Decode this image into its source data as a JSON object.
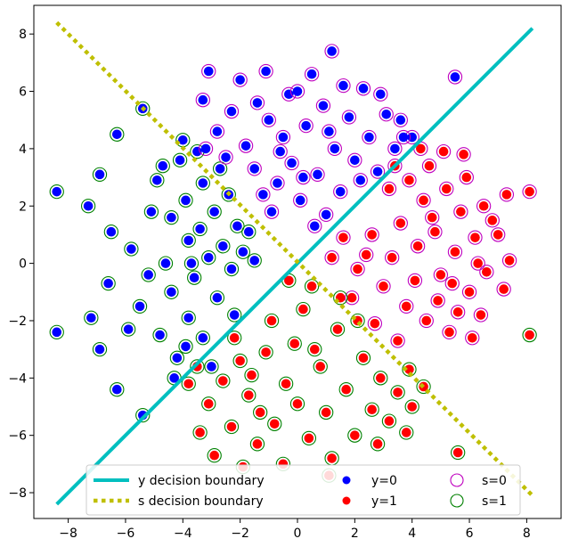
{
  "chart_data": {
    "type": "scatter",
    "title": "",
    "xlabel": "",
    "ylabel": "",
    "xlim": [
      -9.2,
      9.2
    ],
    "ylim": [
      -8.9,
      9.0
    ],
    "xticks": [
      -8,
      -6,
      -4,
      -2,
      0,
      2,
      4,
      6,
      8
    ],
    "yticks": [
      -8,
      -6,
      -4,
      -2,
      0,
      2,
      4,
      6,
      8
    ],
    "grid": false,
    "legend_position": "bottom-center",
    "colors": {
      "y0": "#0000ff",
      "y1": "#ff0000",
      "s0": "#bf00bf",
      "s1": "#008000",
      "y_boundary": "#00bfbf",
      "s_boundary": "#bfbf00"
    },
    "boundaries": [
      {
        "label": "y decision boundary",
        "style": "solid",
        "x": [
          -8.4,
          8.2
        ],
        "y": [
          -8.4,
          8.2
        ]
      },
      {
        "label": "s decision boundary",
        "style": "dotted",
        "x": [
          -8.4,
          8.2
        ],
        "y": [
          8.4,
          -8.1
        ]
      }
    ],
    "legend": [
      {
        "label": "y decision boundary",
        "kind": "line-solid"
      },
      {
        "label": "s decision boundary",
        "kind": "line-dotted"
      },
      {
        "label": "y=0",
        "kind": "dot-y0"
      },
      {
        "label": "y=1",
        "kind": "dot-y1"
      },
      {
        "label": "s=0",
        "kind": "ring-s0"
      },
      {
        "label": "s=1",
        "kind": "ring-s1"
      }
    ],
    "points": [
      {
        "x": -8.4,
        "y": 2.5,
        "y_class": 0,
        "s_class": 1
      },
      {
        "x": -8.4,
        "y": -2.4,
        "y_class": 0,
        "s_class": 1
      },
      {
        "x": -7.3,
        "y": 2.0,
        "y_class": 0,
        "s_class": 1
      },
      {
        "x": -7.2,
        "y": -1.9,
        "y_class": 0,
        "s_class": 1
      },
      {
        "x": -6.9,
        "y": 3.1,
        "y_class": 0,
        "s_class": 1
      },
      {
        "x": -6.9,
        "y": -3.0,
        "y_class": 0,
        "s_class": 1
      },
      {
        "x": -6.3,
        "y": 4.5,
        "y_class": 0,
        "s_class": 1
      },
      {
        "x": -6.3,
        "y": -4.4,
        "y_class": 0,
        "s_class": 1
      },
      {
        "x": -5.4,
        "y": 5.4,
        "y_class": 0,
        "s_class": 1
      },
      {
        "x": -5.4,
        "y": -5.3,
        "y_class": 0,
        "s_class": 1
      },
      {
        "x": -6.5,
        "y": 1.1,
        "y_class": 0,
        "s_class": 1
      },
      {
        "x": -6.6,
        "y": -0.7,
        "y_class": 0,
        "s_class": 1
      },
      {
        "x": -5.8,
        "y": 0.5,
        "y_class": 0,
        "s_class": 1
      },
      {
        "x": -5.5,
        "y": -1.5,
        "y_class": 0,
        "s_class": 1
      },
      {
        "x": -4.9,
        "y": 2.9,
        "y_class": 0,
        "s_class": 1
      },
      {
        "x": -4.8,
        "y": -2.5,
        "y_class": 0,
        "s_class": 1
      },
      {
        "x": -4.6,
        "y": 0.0,
        "y_class": 0,
        "s_class": 1
      },
      {
        "x": -4.4,
        "y": 1.6,
        "y_class": 0,
        "s_class": 1
      },
      {
        "x": -4.4,
        "y": -1.0,
        "y_class": 0,
        "s_class": 1
      },
      {
        "x": -4.1,
        "y": 3.6,
        "y_class": 0,
        "s_class": 1
      },
      {
        "x": -4.2,
        "y": -3.3,
        "y_class": 0,
        "s_class": 1
      },
      {
        "x": -3.9,
        "y": 2.2,
        "y_class": 0,
        "s_class": 1
      },
      {
        "x": -3.8,
        "y": 0.8,
        "y_class": 0,
        "s_class": 1
      },
      {
        "x": -3.8,
        "y": -1.9,
        "y_class": 0,
        "s_class": 1
      },
      {
        "x": -3.6,
        "y": -0.5,
        "y_class": 0,
        "s_class": 1
      },
      {
        "x": -3.4,
        "y": 1.2,
        "y_class": 0,
        "s_class": 1
      },
      {
        "x": -3.3,
        "y": 2.8,
        "y_class": 0,
        "s_class": 1
      },
      {
        "x": -3.3,
        "y": -2.6,
        "y_class": 0,
        "s_class": 1
      },
      {
        "x": -3.1,
        "y": 0.2,
        "y_class": 0,
        "s_class": 1
      },
      {
        "x": -2.9,
        "y": 1.8,
        "y_class": 0,
        "s_class": 1
      },
      {
        "x": -2.8,
        "y": -1.2,
        "y_class": 0,
        "s_class": 1
      },
      {
        "x": -2.6,
        "y": 0.6,
        "y_class": 0,
        "s_class": 1
      },
      {
        "x": -2.4,
        "y": 2.4,
        "y_class": 0,
        "s_class": 1
      },
      {
        "x": -2.3,
        "y": -0.2,
        "y_class": 0,
        "s_class": 1
      },
      {
        "x": -2.1,
        "y": 1.3,
        "y_class": 0,
        "s_class": 1
      },
      {
        "x": -1.9,
        "y": 0.4,
        "y_class": 0,
        "s_class": 1
      },
      {
        "x": -1.7,
        "y": 1.1,
        "y_class": 0,
        "s_class": 1
      },
      {
        "x": -1.5,
        "y": 0.1,
        "y_class": 0,
        "s_class": 1
      },
      {
        "x": -4.0,
        "y": 4.3,
        "y_class": 0,
        "s_class": 1
      },
      {
        "x": -3.5,
        "y": 3.9,
        "y_class": 0,
        "s_class": 1
      },
      {
        "x": -5.1,
        "y": 1.8,
        "y_class": 0,
        "s_class": 1
      },
      {
        "x": -5.9,
        "y": -2.3,
        "y_class": 0,
        "s_class": 1
      },
      {
        "x": -4.3,
        "y": -4.0,
        "y_class": 0,
        "s_class": 1
      },
      {
        "x": -3.0,
        "y": -3.6,
        "y_class": 0,
        "s_class": 1
      },
      {
        "x": -2.7,
        "y": 3.3,
        "y_class": 0,
        "s_class": 1
      },
      {
        "x": -2.2,
        "y": -1.8,
        "y_class": 0,
        "s_class": 1
      },
      {
        "x": -3.7,
        "y": 0.0,
        "y_class": 0,
        "s_class": 1
      },
      {
        "x": -4.7,
        "y": 3.4,
        "y_class": 0,
        "s_class": 1
      },
      {
        "x": -5.2,
        "y": -0.4,
        "y_class": 0,
        "s_class": 1
      },
      {
        "x": -3.9,
        "y": -2.9,
        "y_class": 0,
        "s_class": 1
      },
      {
        "x": -3.2,
        "y": 4.0,
        "y_class": 0,
        "s_class": 0
      },
      {
        "x": -2.8,
        "y": 4.6,
        "y_class": 0,
        "s_class": 0
      },
      {
        "x": -2.3,
        "y": 5.3,
        "y_class": 0,
        "s_class": 0
      },
      {
        "x": -2.0,
        "y": 6.4,
        "y_class": 0,
        "s_class": 0
      },
      {
        "x": -1.8,
        "y": 4.1,
        "y_class": 0,
        "s_class": 0
      },
      {
        "x": -1.5,
        "y": 3.3,
        "y_class": 0,
        "s_class": 0
      },
      {
        "x": -1.1,
        "y": 6.7,
        "y_class": 0,
        "s_class": 0
      },
      {
        "x": -1.0,
        "y": 5.0,
        "y_class": 0,
        "s_class": 0
      },
      {
        "x": -0.7,
        "y": 2.8,
        "y_class": 0,
        "s_class": 0
      },
      {
        "x": -0.5,
        "y": 4.4,
        "y_class": 0,
        "s_class": 0
      },
      {
        "x": -0.3,
        "y": 5.9,
        "y_class": 0,
        "s_class": 0
      },
      {
        "x": -0.2,
        "y": 3.5,
        "y_class": 0,
        "s_class": 0
      },
      {
        "x": 0.1,
        "y": 2.2,
        "y_class": 0,
        "s_class": 0
      },
      {
        "x": 0.3,
        "y": 4.8,
        "y_class": 0,
        "s_class": 0
      },
      {
        "x": 0.5,
        "y": 6.6,
        "y_class": 0,
        "s_class": 0
      },
      {
        "x": 0.7,
        "y": 3.1,
        "y_class": 0,
        "s_class": 0
      },
      {
        "x": 0.9,
        "y": 5.5,
        "y_class": 0,
        "s_class": 0
      },
      {
        "x": 1.2,
        "y": 7.4,
        "y_class": 0,
        "s_class": 0
      },
      {
        "x": 1.3,
        "y": 4.0,
        "y_class": 0,
        "s_class": 0
      },
      {
        "x": 1.5,
        "y": 2.5,
        "y_class": 0,
        "s_class": 0
      },
      {
        "x": 1.8,
        "y": 5.1,
        "y_class": 0,
        "s_class": 0
      },
      {
        "x": 2.0,
        "y": 3.6,
        "y_class": 0,
        "s_class": 0
      },
      {
        "x": 2.3,
        "y": 6.1,
        "y_class": 0,
        "s_class": 0
      },
      {
        "x": 2.5,
        "y": 4.4,
        "y_class": 0,
        "s_class": 0
      },
      {
        "x": 2.8,
        "y": 3.2,
        "y_class": 0,
        "s_class": 0
      },
      {
        "x": 3.1,
        "y": 5.2,
        "y_class": 0,
        "s_class": 0
      },
      {
        "x": 3.4,
        "y": 4.0,
        "y_class": 0,
        "s_class": 0
      },
      {
        "x": 3.6,
        "y": 5.0,
        "y_class": 0,
        "s_class": 0
      },
      {
        "x": 4.0,
        "y": 4.4,
        "y_class": 0,
        "s_class": 0
      },
      {
        "x": -3.1,
        "y": 6.7,
        "y_class": 0,
        "s_class": 0
      },
      {
        "x": -3.3,
        "y": 5.7,
        "y_class": 0,
        "s_class": 0
      },
      {
        "x": -1.2,
        "y": 2.4,
        "y_class": 0,
        "s_class": 0
      },
      {
        "x": -0.9,
        "y": 1.8,
        "y_class": 0,
        "s_class": 0
      },
      {
        "x": 0.6,
        "y": 1.3,
        "y_class": 0,
        "s_class": 0
      },
      {
        "x": 1.0,
        "y": 1.7,
        "y_class": 0,
        "s_class": 0
      },
      {
        "x": 2.2,
        "y": 2.9,
        "y_class": 0,
        "s_class": 0
      },
      {
        "x": -2.5,
        "y": 3.7,
        "y_class": 0,
        "s_class": 0
      },
      {
        "x": 0.0,
        "y": 6.0,
        "y_class": 0,
        "s_class": 0
      },
      {
        "x": 1.6,
        "y": 6.2,
        "y_class": 0,
        "s_class": 0
      },
      {
        "x": 2.9,
        "y": 5.9,
        "y_class": 0,
        "s_class": 0
      },
      {
        "x": 5.5,
        "y": 6.5,
        "y_class": 0,
        "s_class": 0
      },
      {
        "x": -0.6,
        "y": 3.9,
        "y_class": 0,
        "s_class": 0
      },
      {
        "x": 1.1,
        "y": 4.6,
        "y_class": 0,
        "s_class": 0
      },
      {
        "x": 3.7,
        "y": 4.4,
        "y_class": 0,
        "s_class": 0
      },
      {
        "x": -1.4,
        "y": 5.6,
        "y_class": 0,
        "s_class": 0
      },
      {
        "x": 0.2,
        "y": 3.0,
        "y_class": 0,
        "s_class": 0
      },
      {
        "x": 3.2,
        "y": 2.6,
        "y_class": 1,
        "s_class": 0
      },
      {
        "x": 3.6,
        "y": 1.4,
        "y_class": 1,
        "s_class": 0
      },
      {
        "x": 3.9,
        "y": 2.9,
        "y_class": 1,
        "s_class": 0
      },
      {
        "x": 4.2,
        "y": 0.6,
        "y_class": 1,
        "s_class": 0
      },
      {
        "x": 4.4,
        "y": 2.2,
        "y_class": 1,
        "s_class": 0
      },
      {
        "x": 4.6,
        "y": 3.4,
        "y_class": 1,
        "s_class": 0
      },
      {
        "x": 4.8,
        "y": 1.1,
        "y_class": 1,
        "s_class": 0
      },
      {
        "x": 5.0,
        "y": -0.4,
        "y_class": 1,
        "s_class": 0
      },
      {
        "x": 5.2,
        "y": 2.6,
        "y_class": 1,
        "s_class": 0
      },
      {
        "x": 5.5,
        "y": 0.4,
        "y_class": 1,
        "s_class": 0
      },
      {
        "x": 5.7,
        "y": 1.8,
        "y_class": 1,
        "s_class": 0
      },
      {
        "x": 6.0,
        "y": -1.0,
        "y_class": 1,
        "s_class": 0
      },
      {
        "x": 6.2,
        "y": 0.9,
        "y_class": 1,
        "s_class": 0
      },
      {
        "x": 6.5,
        "y": 2.0,
        "y_class": 1,
        "s_class": 0
      },
      {
        "x": 6.6,
        "y": -0.3,
        "y_class": 1,
        "s_class": 0
      },
      {
        "x": 7.0,
        "y": 1.0,
        "y_class": 1,
        "s_class": 0
      },
      {
        "x": 7.3,
        "y": 2.4,
        "y_class": 1,
        "s_class": 0
      },
      {
        "x": 7.2,
        "y": -0.9,
        "y_class": 1,
        "s_class": 0
      },
      {
        "x": 8.1,
        "y": 2.5,
        "y_class": 1,
        "s_class": 0
      },
      {
        "x": 2.1,
        "y": -0.2,
        "y_class": 1,
        "s_class": 0
      },
      {
        "x": 2.6,
        "y": 1.0,
        "y_class": 1,
        "s_class": 0
      },
      {
        "x": 3.0,
        "y": -0.8,
        "y_class": 1,
        "s_class": 0
      },
      {
        "x": 3.3,
        "y": 0.2,
        "y_class": 1,
        "s_class": 0
      },
      {
        "x": 3.8,
        "y": -1.5,
        "y_class": 1,
        "s_class": 0
      },
      {
        "x": 4.1,
        "y": -0.6,
        "y_class": 1,
        "s_class": 0
      },
      {
        "x": 4.5,
        "y": -2.0,
        "y_class": 1,
        "s_class": 0
      },
      {
        "x": 4.9,
        "y": -1.3,
        "y_class": 1,
        "s_class": 0
      },
      {
        "x": 5.3,
        "y": -2.4,
        "y_class": 1,
        "s_class": 0
      },
      {
        "x": 5.6,
        "y": -1.7,
        "y_class": 1,
        "s_class": 0
      },
      {
        "x": 6.1,
        "y": -2.6,
        "y_class": 1,
        "s_class": 0
      },
      {
        "x": 6.4,
        "y": -1.8,
        "y_class": 1,
        "s_class": 0
      },
      {
        "x": 1.6,
        "y": 0.9,
        "y_class": 1,
        "s_class": 0
      },
      {
        "x": 1.9,
        "y": -1.2,
        "y_class": 1,
        "s_class": 0
      },
      {
        "x": 2.7,
        "y": -2.1,
        "y_class": 1,
        "s_class": 0
      },
      {
        "x": 4.3,
        "y": 4.0,
        "y_class": 1,
        "s_class": 0
      },
      {
        "x": 5.1,
        "y": 3.9,
        "y_class": 1,
        "s_class": 0
      },
      {
        "x": 5.9,
        "y": 3.0,
        "y_class": 1,
        "s_class": 0
      },
      {
        "x": 6.8,
        "y": 1.5,
        "y_class": 1,
        "s_class": 0
      },
      {
        "x": 7.4,
        "y": 0.1,
        "y_class": 1,
        "s_class": 0
      },
      {
        "x": 5.8,
        "y": 3.8,
        "y_class": 1,
        "s_class": 0
      },
      {
        "x": 3.5,
        "y": -2.7,
        "y_class": 1,
        "s_class": 0
      },
      {
        "x": 4.7,
        "y": 1.6,
        "y_class": 1,
        "s_class": 0
      },
      {
        "x": 5.4,
        "y": -0.7,
        "y_class": 1,
        "s_class": 0
      },
      {
        "x": 6.3,
        "y": 0.0,
        "y_class": 1,
        "s_class": 0
      },
      {
        "x": 3.4,
        "y": 3.4,
        "y_class": 1,
        "s_class": 0
      },
      {
        "x": 2.4,
        "y": 0.3,
        "y_class": 1,
        "s_class": 0
      },
      {
        "x": 1.2,
        "y": 0.2,
        "y_class": 1,
        "s_class": 0
      },
      {
        "x": 8.1,
        "y": -2.5,
        "y_class": 1,
        "s_class": 1
      },
      {
        "x": 0.5,
        "y": -0.8,
        "y_class": 1,
        "s_class": 1
      },
      {
        "x": 0.2,
        "y": -1.6,
        "y_class": 1,
        "s_class": 1
      },
      {
        "x": -0.1,
        "y": -2.8,
        "y_class": 1,
        "s_class": 1
      },
      {
        "x": -0.4,
        "y": -4.2,
        "y_class": 1,
        "s_class": 1
      },
      {
        "x": -0.8,
        "y": -5.6,
        "y_class": 1,
        "s_class": 1
      },
      {
        "x": -1.1,
        "y": -3.1,
        "y_class": 1,
        "s_class": 1
      },
      {
        "x": -1.4,
        "y": -6.3,
        "y_class": 1,
        "s_class": 1
      },
      {
        "x": -1.7,
        "y": -4.6,
        "y_class": 1,
        "s_class": 1
      },
      {
        "x": -2.0,
        "y": -3.4,
        "y_class": 1,
        "s_class": 1
      },
      {
        "x": -2.3,
        "y": -5.7,
        "y_class": 1,
        "s_class": 1
      },
      {
        "x": -2.6,
        "y": -4.1,
        "y_class": 1,
        "s_class": 1
      },
      {
        "x": -2.9,
        "y": -6.7,
        "y_class": 1,
        "s_class": 1
      },
      {
        "x": -3.1,
        "y": -4.9,
        "y_class": 1,
        "s_class": 1
      },
      {
        "x": -3.4,
        "y": -5.9,
        "y_class": 1,
        "s_class": 1
      },
      {
        "x": -3.8,
        "y": -4.2,
        "y_class": 1,
        "s_class": 1
      },
      {
        "x": 0.8,
        "y": -3.6,
        "y_class": 1,
        "s_class": 1
      },
      {
        "x": 1.0,
        "y": -5.2,
        "y_class": 1,
        "s_class": 1
      },
      {
        "x": 1.2,
        "y": -6.8,
        "y_class": 1,
        "s_class": 1
      },
      {
        "x": 1.4,
        "y": -2.3,
        "y_class": 1,
        "s_class": 1
      },
      {
        "x": 1.7,
        "y": -4.4,
        "y_class": 1,
        "s_class": 1
      },
      {
        "x": 2.0,
        "y": -6.0,
        "y_class": 1,
        "s_class": 1
      },
      {
        "x": 2.3,
        "y": -3.3,
        "y_class": 1,
        "s_class": 1
      },
      {
        "x": 2.6,
        "y": -5.1,
        "y_class": 1,
        "s_class": 1
      },
      {
        "x": 2.9,
        "y": -4.0,
        "y_class": 1,
        "s_class": 1
      },
      {
        "x": 3.2,
        "y": -5.5,
        "y_class": 1,
        "s_class": 1
      },
      {
        "x": 3.5,
        "y": -4.5,
        "y_class": 1,
        "s_class": 1
      },
      {
        "x": 3.9,
        "y": -3.7,
        "y_class": 1,
        "s_class": 1
      },
      {
        "x": 4.0,
        "y": -5.0,
        "y_class": 1,
        "s_class": 1
      },
      {
        "x": 3.8,
        "y": -5.9,
        "y_class": 1,
        "s_class": 1
      },
      {
        "x": 1.1,
        "y": -7.4,
        "y_class": 1,
        "s_class": 1
      },
      {
        "x": -0.5,
        "y": -7.0,
        "y_class": 1,
        "s_class": 1
      },
      {
        "x": -1.9,
        "y": -7.1,
        "y_class": 1,
        "s_class": 1
      },
      {
        "x": 5.6,
        "y": -6.6,
        "y_class": 1,
        "s_class": 1
      },
      {
        "x": -0.9,
        "y": -2.0,
        "y_class": 1,
        "s_class": 1
      },
      {
        "x": -0.3,
        "y": -0.6,
        "y_class": 1,
        "s_class": 1
      },
      {
        "x": 0.0,
        "y": -4.9,
        "y_class": 1,
        "s_class": 1
      },
      {
        "x": -1.3,
        "y": -5.2,
        "y_class": 1,
        "s_class": 1
      },
      {
        "x": -2.2,
        "y": -2.6,
        "y_class": 1,
        "s_class": 1
      },
      {
        "x": 0.4,
        "y": -6.1,
        "y_class": 1,
        "s_class": 1
      },
      {
        "x": 2.1,
        "y": -2.0,
        "y_class": 1,
        "s_class": 1
      },
      {
        "x": 1.5,
        "y": -1.2,
        "y_class": 1,
        "s_class": 1
      },
      {
        "x": -1.6,
        "y": -3.9,
        "y_class": 1,
        "s_class": 1
      },
      {
        "x": 0.6,
        "y": -3.0,
        "y_class": 1,
        "s_class": 1
      },
      {
        "x": 2.8,
        "y": -6.3,
        "y_class": 1,
        "s_class": 1
      },
      {
        "x": -3.5,
        "y": -3.6,
        "y_class": 1,
        "s_class": 1
      },
      {
        "x": 4.4,
        "y": -4.3,
        "y_class": 1,
        "s_class": 1
      }
    ]
  }
}
